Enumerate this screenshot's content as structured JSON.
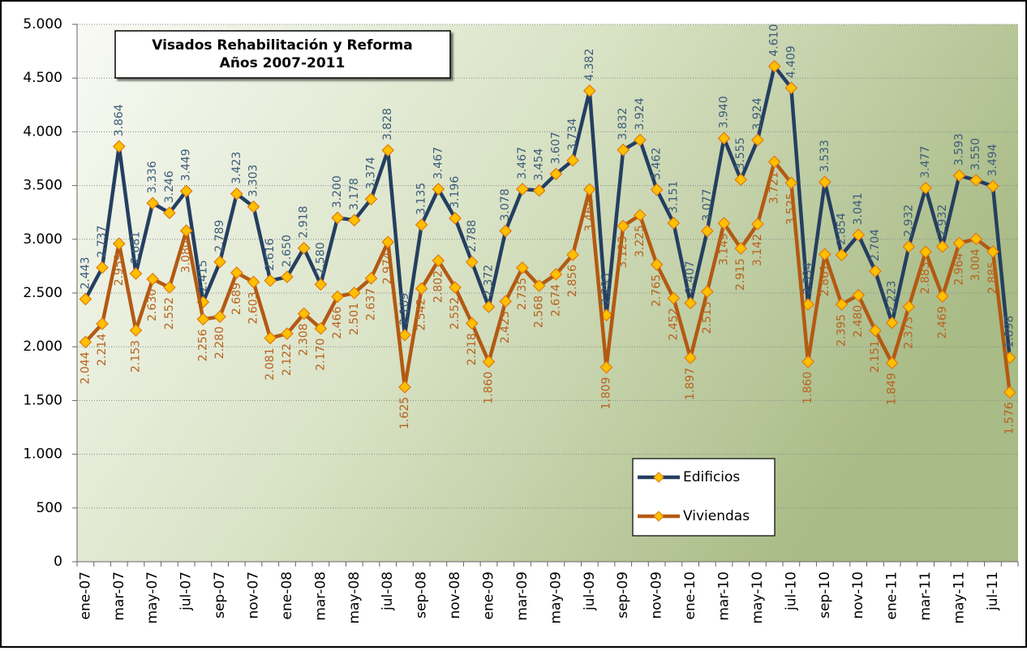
{
  "chart_data": {
    "type": "line",
    "title": "Visados Rehabilitación y Reforma",
    "subtitle": "Años 2007-2011",
    "categories": [
      "ene-07",
      null,
      "mar-07",
      null,
      "may-07",
      null,
      "jul-07",
      null,
      "sep-07",
      null,
      "nov-07",
      null,
      "ene-08",
      null,
      "mar-08",
      null,
      "may-08",
      null,
      "jul-08",
      null,
      "sep-08",
      null,
      "nov-08",
      null,
      "ene-09",
      null,
      "mar-09",
      null,
      "may-09",
      null,
      "jul-09",
      null,
      "sep-09",
      null,
      "nov-09",
      null,
      "ene-10",
      null,
      "mar-10",
      null,
      "may-10",
      null,
      "jul-10",
      null,
      "sep-10",
      null,
      "nov-10",
      null,
      "ene-11",
      null,
      "mar-11",
      null,
      "may-11",
      null,
      "jul-11",
      null
    ],
    "series": [
      {
        "name": "Edificios",
        "color": "#243f60",
        "values": [
          2443,
          2737,
          3864,
          2681,
          3336,
          3246,
          3449,
          2415,
          2789,
          3423,
          3303,
          2616,
          2650,
          2918,
          2580,
          3200,
          3178,
          3374,
          3828,
          2109,
          3135,
          3467,
          3196,
          2788,
          2372,
          3078,
          3467,
          3454,
          3607,
          3734,
          4382,
          2295,
          3832,
          3924,
          3462,
          3151,
          2407,
          3077,
          3940,
          3555,
          3924,
          4610,
          4409,
          2394,
          3533,
          2854,
          3041,
          2704,
          2223,
          2932,
          3477,
          2932,
          3593,
          3550,
          3494,
          1898
        ],
        "value_labels": [
          "2.443",
          "2.737",
          "3.864",
          "2.681",
          "3.336",
          "3.246",
          "3.449",
          "2.415",
          "2.789",
          "3.423",
          "3.303",
          "2.616",
          "2.650",
          "2.918",
          "2.580",
          "3.200",
          "3.178",
          "3.374",
          "3.828",
          "2.109",
          "3.135",
          "3.467",
          "3.196",
          "2.788",
          "2.372",
          "3.078",
          "3.467",
          "3.454",
          "3.607",
          "3.734",
          "4.382",
          "2.295",
          "3.832",
          "3.924",
          "3.462",
          "3.151",
          "2.407",
          "3.077",
          "3.940",
          "3.555",
          "3.924",
          "4.610",
          "4.409",
          "2.394",
          "3.533",
          "2.854",
          "3.041",
          "2.704",
          "2.223",
          "2.932",
          "3.477",
          "2.932",
          "3.593",
          "3.550",
          "3.494",
          "1.898"
        ]
      },
      {
        "name": "Viviendas",
        "color": "#b35a12",
        "values": [
          2044,
          2214,
          2959,
          2153,
          2630,
          2552,
          3080,
          2256,
          2280,
          2689,
          2603,
          2081,
          2122,
          2308,
          2170,
          2466,
          2501,
          2637,
          2974,
          1625,
          2542,
          2802,
          2552,
          2218,
          1860,
          2423,
          2735,
          2568,
          2674,
          2856,
          3464,
          1809,
          3123,
          3225,
          2765,
          2452,
          1897,
          2513,
          3149,
          2915,
          3142,
          3721,
          3525,
          1860,
          2861,
          2395,
          2480,
          2151,
          1849,
          2373,
          2883,
          2469,
          2964,
          3004,
          2885,
          1576
        ],
        "value_labels": [
          "2.044",
          "2.214",
          "2.959",
          "2.153",
          "2.630",
          "2.552",
          "3.080",
          "2.256",
          "2.280",
          "2.689",
          "2.603",
          "2.081",
          "2.122",
          "2.308",
          "2.170",
          "2.466",
          "2.501",
          "2.637",
          "2.974",
          "1.625",
          "2.542",
          "2.802",
          "2.552",
          "2.218",
          "1.860",
          "2.423",
          "2.735",
          "2.568",
          "2.674",
          "2.856",
          "3.464",
          "1.809",
          "3.123",
          "3.225",
          "2.765",
          "2.452",
          "1.897",
          "2.513",
          "3.149",
          "2.915",
          "3.142",
          "3.721",
          "3.525",
          "1.860",
          "2.861",
          "2.395",
          "2.480",
          "2.151",
          "1.849",
          "2.373",
          "2.883",
          "2.469",
          "2.964",
          "3.004",
          "2.885",
          "1.576"
        ]
      }
    ],
    "ylim": [
      0,
      5000
    ],
    "yticks": [
      0,
      500,
      {
        "value": 1000,
        "label": "1.000"
      },
      {
        "value": 1500,
        "label": "1.500"
      },
      {
        "value": 2000,
        "label": "2.000"
      },
      {
        "value": 2500,
        "label": "2.500"
      },
      {
        "value": 3000,
        "label": "3.000"
      },
      {
        "value": 3500,
        "label": "3.500"
      },
      {
        "value": 4000,
        "label": "4.000"
      },
      {
        "value": 4500,
        "label": "4.500"
      },
      {
        "value": 5000,
        "label": "5.000"
      }
    ],
    "grid": true,
    "marker_color": "#ffc000"
  }
}
